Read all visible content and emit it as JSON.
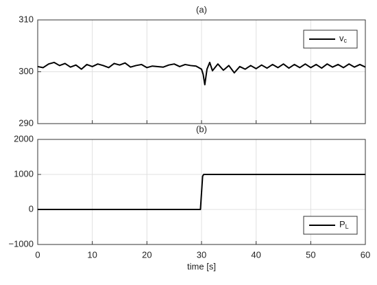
{
  "chart_data": [
    {
      "type": "line",
      "title": "(a)",
      "x": [
        0,
        1,
        2,
        3,
        4,
        5,
        6,
        7,
        8,
        9,
        10,
        11,
        12,
        13,
        14,
        15,
        16,
        17,
        18,
        19,
        20,
        21,
        22,
        23,
        24,
        25,
        26,
        27,
        28,
        29,
        30,
        30.3,
        30.6,
        31,
        31.5,
        32,
        33,
        34,
        35,
        36,
        37,
        38,
        39,
        40,
        41,
        42,
        43,
        44,
        45,
        46,
        47,
        48,
        49,
        50,
        51,
        52,
        53,
        54,
        55,
        56,
        57,
        58,
        59,
        60
      ],
      "series": [
        {
          "name": "vc",
          "color": "#000000",
          "values": [
            301,
            300.8,
            301.5,
            301.8,
            301.2,
            301.6,
            300.9,
            301.3,
            300.5,
            301.4,
            301.0,
            301.5,
            301.2,
            300.8,
            301.6,
            301.3,
            301.7,
            300.9,
            301.2,
            301.4,
            300.8,
            301.1,
            301.0,
            300.9,
            301.3,
            301.5,
            301.0,
            301.4,
            301.2,
            301.1,
            300.5,
            299.5,
            297.5,
            300.5,
            301.8,
            300.2,
            301.5,
            300.3,
            301.2,
            299.8,
            301.0,
            300.5,
            301.2,
            300.6,
            301.3,
            300.7,
            301.4,
            300.8,
            301.5,
            300.7,
            301.4,
            300.8,
            301.5,
            300.8,
            301.4,
            300.7,
            301.5,
            300.9,
            301.4,
            300.8,
            301.5,
            300.9,
            301.4,
            300.9
          ]
        }
      ],
      "xlim": [
        0,
        60
      ],
      "xticks": [
        0,
        10,
        20,
        30,
        40,
        50,
        60
      ],
      "ylim": [
        290,
        310
      ],
      "yticks": [
        290,
        300,
        310
      ],
      "grid": true,
      "legend": "upper right"
    },
    {
      "type": "line",
      "title": "(b)",
      "xlabel": "time [s]",
      "x": [
        0,
        29.8,
        30.2,
        30.4,
        60
      ],
      "series": [
        {
          "name": "PL",
          "color": "#000000",
          "values": [
            0,
            0,
            950,
            1000,
            1000
          ]
        }
      ],
      "xlim": [
        0,
        60
      ],
      "xticks": [
        0,
        10,
        20,
        30,
        40,
        50,
        60
      ],
      "ylim": [
        -1000,
        2000
      ],
      "yticks": [
        {
          "value": -1000,
          "label": "−1000"
        },
        0,
        1000,
        2000
      ],
      "grid": true,
      "legend": "lower right"
    }
  ]
}
